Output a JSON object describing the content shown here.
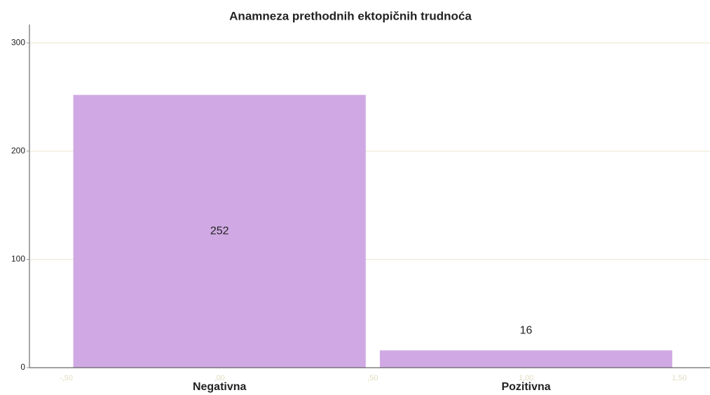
{
  "chart_data": {
    "type": "bar",
    "title": "Anamneza prethodnih ektopičnih trudnoća",
    "categories": [
      "Negativna",
      "Pozitivna"
    ],
    "x": [
      0,
      1
    ],
    "values": [
      252,
      16
    ],
    "color": "#d0a9e4",
    "xlim": [
      -0.62,
      1.6
    ],
    "xticks": [
      {
        "value": -0.5,
        "label": "-,50"
      },
      {
        "value": 0,
        "label": ",00"
      },
      {
        "value": 0.5,
        "label": ",50"
      },
      {
        "value": 1,
        "label": "1,00"
      },
      {
        "value": 1.5,
        "label": "1,50"
      }
    ],
    "ylim": [
      0,
      317
    ],
    "yticks": [
      0,
      100,
      200,
      300
    ],
    "grid": true
  }
}
